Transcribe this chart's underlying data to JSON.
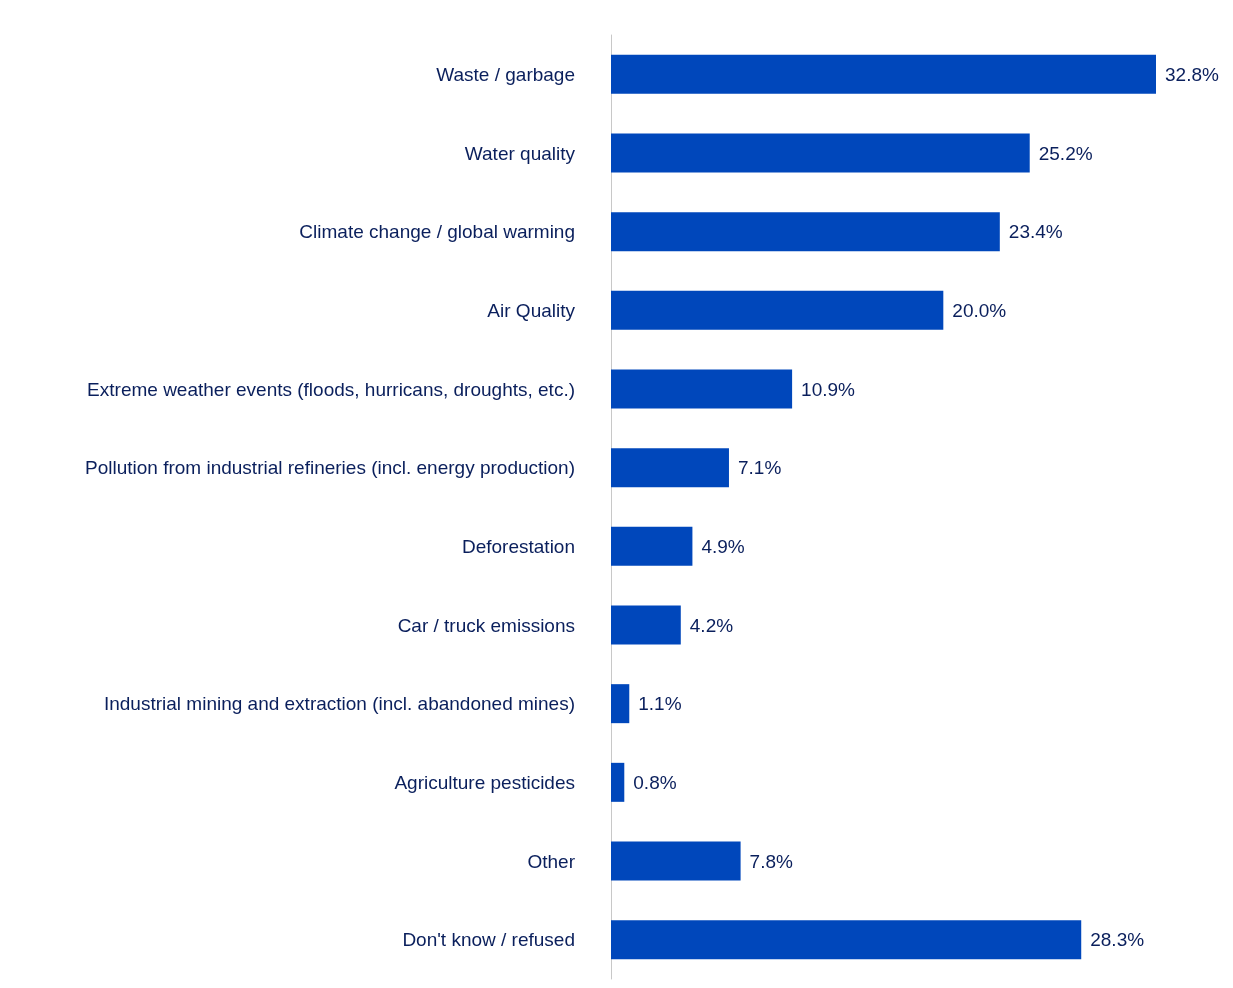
{
  "chart_data": {
    "type": "bar",
    "orientation": "horizontal",
    "categories": [
      "Waste / garbage",
      "Water quality",
      "Climate change / global warming",
      "Air Quality",
      "Extreme weather events (floods, hurricans, droughts, etc.)",
      "Pollution from industrial refineries (incl. energy production)",
      "Deforestation",
      "Car / truck emissions",
      "Industrial mining and extraction (incl. abandoned mines)",
      "Agriculture pesticides",
      "Other",
      "Don't know / refused"
    ],
    "values": [
      32.8,
      25.2,
      23.4,
      20.0,
      10.9,
      7.1,
      4.9,
      4.2,
      1.1,
      0.8,
      7.8,
      28.3
    ],
    "value_labels": [
      "32.8%",
      "25.2%",
      "23.4%",
      "20.0%",
      "10.9%",
      "7.1%",
      "4.9%",
      "4.2%",
      "1.1%",
      "0.8%",
      "7.8%",
      "28.3%"
    ],
    "color": "#0047bb"
  }
}
